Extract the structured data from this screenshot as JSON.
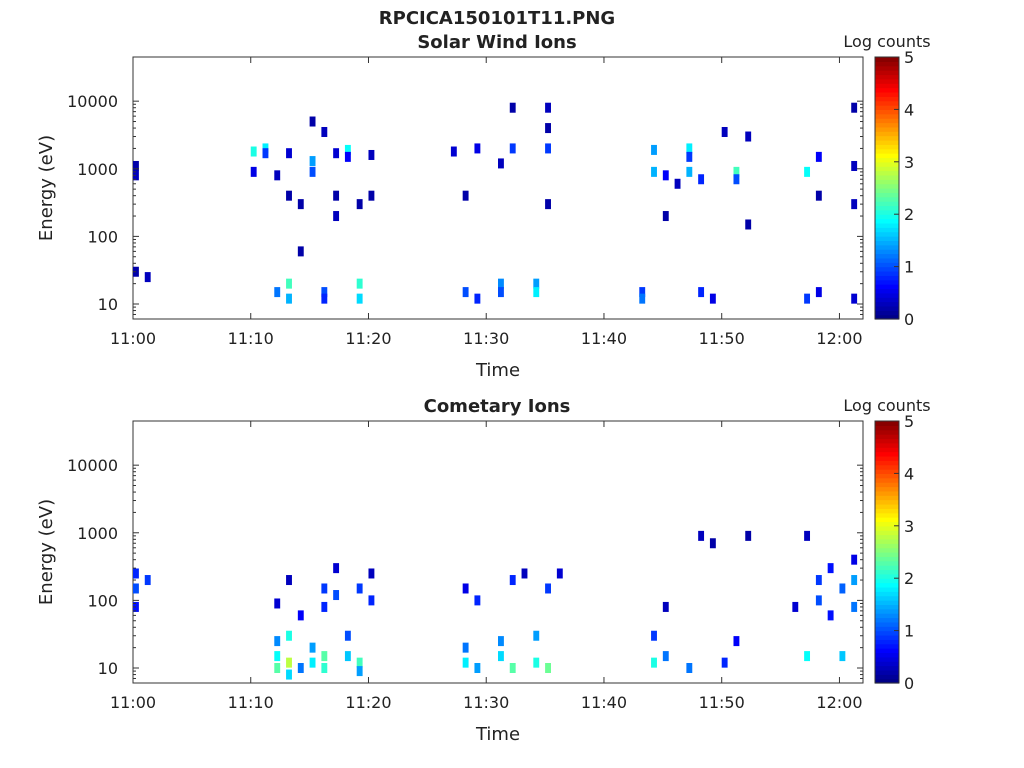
{
  "figure_title": "RPCICA150101T11.PNG",
  "colorbar": {
    "label": "Log counts",
    "ticks": [
      "0",
      "1",
      "2",
      "3",
      "4",
      "5"
    ],
    "range": [
      0,
      5
    ],
    "colormap": "jet"
  },
  "chart_data": [
    {
      "type": "heatmap",
      "title": "Solar Wind Ions",
      "xlabel": "Time",
      "ylabel": "Energy (eV)",
      "yscale": "log",
      "ylim": [
        6,
        45000
      ],
      "xlim": [
        "11:00",
        "12:02"
      ],
      "xticks": [
        "11:00",
        "11:10",
        "11:20",
        "11:30",
        "11:40",
        "11:50",
        "12:00"
      ],
      "yticks": [
        "10",
        "100",
        "1000",
        "10000"
      ],
      "cells": [
        [
          "11:00",
          1100,
          0.2
        ],
        [
          "11:00",
          800,
          0.3
        ],
        [
          "11:00",
          30,
          0.2
        ],
        [
          "11:01",
          25,
          0.3
        ],
        [
          "11:10",
          1800,
          2.0
        ],
        [
          "11:10",
          900,
          0.5
        ],
        [
          "11:11",
          2000,
          1.8
        ],
        [
          "11:11",
          1700,
          0.9
        ],
        [
          "11:12",
          15,
          1.2
        ],
        [
          "11:12",
          800,
          0.3
        ],
        [
          "11:13",
          20,
          2.2
        ],
        [
          "11:13",
          12,
          1.5
        ],
        [
          "11:13",
          1700,
          0.4
        ],
        [
          "11:13",
          400,
          0.2
        ],
        [
          "11:14",
          300,
          0.2
        ],
        [
          "11:14",
          60,
          0.2
        ],
        [
          "11:15",
          1300,
          1.4
        ],
        [
          "11:15",
          900,
          1.0
        ],
        [
          "11:15",
          5000,
          0.2
        ],
        [
          "11:16",
          15,
          1.0
        ],
        [
          "11:16",
          12,
          0.8
        ],
        [
          "11:16",
          3500,
          0.3
        ],
        [
          "11:17",
          400,
          0.2
        ],
        [
          "11:17",
          200,
          0.3
        ],
        [
          "11:17",
          1700,
          0.4
        ],
        [
          "11:18",
          1900,
          1.9
        ],
        [
          "11:18",
          1500,
          0.6
        ],
        [
          "11:19",
          20,
          2.1
        ],
        [
          "11:19",
          12,
          1.7
        ],
        [
          "11:19",
          300,
          0.2
        ],
        [
          "11:20",
          1600,
          0.3
        ],
        [
          "11:20",
          400,
          0.2
        ],
        [
          "11:27",
          1800,
          0.4
        ],
        [
          "11:28",
          15,
          1.0
        ],
        [
          "11:28",
          400,
          0.2
        ],
        [
          "11:29",
          2000,
          0.5
        ],
        [
          "11:29",
          12,
          0.8
        ],
        [
          "11:31",
          20,
          1.3
        ],
        [
          "11:31",
          15,
          1.0
        ],
        [
          "11:31",
          1200,
          0.3
        ],
        [
          "11:32",
          8000,
          0.2
        ],
        [
          "11:32",
          2000,
          0.9
        ],
        [
          "11:34",
          20,
          1.4
        ],
        [
          "11:34",
          15,
          1.8
        ],
        [
          "11:35",
          2000,
          0.9
        ],
        [
          "11:35",
          8000,
          0.3
        ],
        [
          "11:35",
          4000,
          0.2
        ],
        [
          "11:35",
          300,
          0.2
        ],
        [
          "11:43",
          15,
          0.9
        ],
        [
          "11:43",
          12,
          1.2
        ],
        [
          "11:44",
          1900,
          1.4
        ],
        [
          "11:44",
          900,
          1.5
        ],
        [
          "11:45",
          800,
          0.6
        ],
        [
          "11:45",
          200,
          0.2
        ],
        [
          "11:46",
          600,
          0.3
        ],
        [
          "11:47",
          2000,
          1.8
        ],
        [
          "11:47",
          1500,
          0.9
        ],
        [
          "11:47",
          900,
          1.5
        ],
        [
          "11:48",
          700,
          0.8
        ],
        [
          "11:48",
          15,
          0.8
        ],
        [
          "11:49",
          12,
          0.5
        ],
        [
          "11:50",
          3500,
          0.3
        ],
        [
          "11:51",
          900,
          2.2
        ],
        [
          "11:51",
          700,
          1.0
        ],
        [
          "11:52",
          3000,
          0.3
        ],
        [
          "11:52",
          150,
          0.2
        ],
        [
          "11:57",
          900,
          1.9
        ],
        [
          "11:57",
          12,
          0.9
        ],
        [
          "11:58",
          1500,
          0.6
        ],
        [
          "11:58",
          400,
          0.2
        ],
        [
          "11:58",
          15,
          0.5
        ],
        [
          "12:01",
          1100,
          0.3
        ],
        [
          "12:01",
          300,
          0.3
        ],
        [
          "12:01",
          8000,
          0.2
        ],
        [
          "12:01",
          12,
          0.4
        ]
      ]
    },
    {
      "type": "heatmap",
      "title": "Cometary Ions",
      "xlabel": "Time",
      "ylabel": "Energy (eV)",
      "yscale": "log",
      "ylim": [
        6,
        45000
      ],
      "xlim": [
        "11:00",
        "12:02"
      ],
      "xticks": [
        "11:00",
        "11:10",
        "11:20",
        "11:30",
        "11:40",
        "11:50",
        "12:00"
      ],
      "yticks": [
        "10",
        "100",
        "1000",
        "10000"
      ],
      "cells": [
        [
          "11:00",
          250,
          0.8
        ],
        [
          "11:00",
          150,
          1.0
        ],
        [
          "11:00",
          80,
          0.7
        ],
        [
          "11:01",
          200,
          0.9
        ],
        [
          "11:12",
          25,
          1.3
        ],
        [
          "11:12",
          15,
          1.9
        ],
        [
          "11:12",
          10,
          2.3
        ],
        [
          "11:12",
          90,
          0.4
        ],
        [
          "11:13",
          30,
          2.0
        ],
        [
          "11:13",
          12,
          2.8
        ],
        [
          "11:13",
          8,
          1.7
        ],
        [
          "11:13",
          200,
          0.3
        ],
        [
          "11:14",
          10,
          1.2
        ],
        [
          "11:14",
          60,
          0.6
        ],
        [
          "11:15",
          20,
          1.4
        ],
        [
          "11:15",
          12,
          1.8
        ],
        [
          "11:16",
          15,
          2.3
        ],
        [
          "11:16",
          10,
          2.1
        ],
        [
          "11:16",
          80,
          0.8
        ],
        [
          "11:16",
          150,
          0.9
        ],
        [
          "11:17",
          120,
          1.0
        ],
        [
          "11:17",
          300,
          0.4
        ],
        [
          "11:18",
          30,
          1.0
        ],
        [
          "11:18",
          15,
          1.6
        ],
        [
          "11:19",
          12,
          2.2
        ],
        [
          "11:19",
          9,
          1.4
        ],
        [
          "11:19",
          150,
          0.9
        ],
        [
          "11:20",
          100,
          0.8
        ],
        [
          "11:20",
          250,
          0.3
        ],
        [
          "11:28",
          20,
          1.2
        ],
        [
          "11:28",
          12,
          1.8
        ],
        [
          "11:28",
          150,
          0.5
        ],
        [
          "11:29",
          10,
          1.4
        ],
        [
          "11:29",
          100,
          0.8
        ],
        [
          "11:31",
          15,
          1.7
        ],
        [
          "11:31",
          25,
          1.3
        ],
        [
          "11:32",
          10,
          2.3
        ],
        [
          "11:32",
          200,
          0.8
        ],
        [
          "11:33",
          250,
          0.3
        ],
        [
          "11:34",
          30,
          1.4
        ],
        [
          "11:34",
          12,
          2.0
        ],
        [
          "11:35",
          10,
          2.4
        ],
        [
          "11:35",
          150,
          0.9
        ],
        [
          "11:36",
          250,
          0.4
        ],
        [
          "11:44",
          12,
          2.0
        ],
        [
          "11:44",
          30,
          0.9
        ],
        [
          "11:45",
          15,
          1.2
        ],
        [
          "11:45",
          80,
          0.3
        ],
        [
          "11:47",
          10,
          1.2
        ],
        [
          "11:48",
          900,
          0.3
        ],
        [
          "11:49",
          700,
          0.2
        ],
        [
          "11:50",
          12,
          0.8
        ],
        [
          "11:51",
          25,
          0.6
        ],
        [
          "11:52",
          900,
          0.2
        ],
        [
          "11:56",
          80,
          0.4
        ],
        [
          "11:57",
          15,
          1.9
        ],
        [
          "11:57",
          900,
          0.3
        ],
        [
          "11:58",
          200,
          0.9
        ],
        [
          "11:58",
          100,
          1.0
        ],
        [
          "11:59",
          300,
          0.7
        ],
        [
          "11:59",
          60,
          0.7
        ],
        [
          "12:00",
          15,
          1.6
        ],
        [
          "12:00",
          150,
          1.1
        ],
        [
          "12:01",
          200,
          1.4
        ],
        [
          "12:01",
          80,
          1.2
        ],
        [
          "12:01",
          400,
          0.5
        ]
      ]
    }
  ]
}
